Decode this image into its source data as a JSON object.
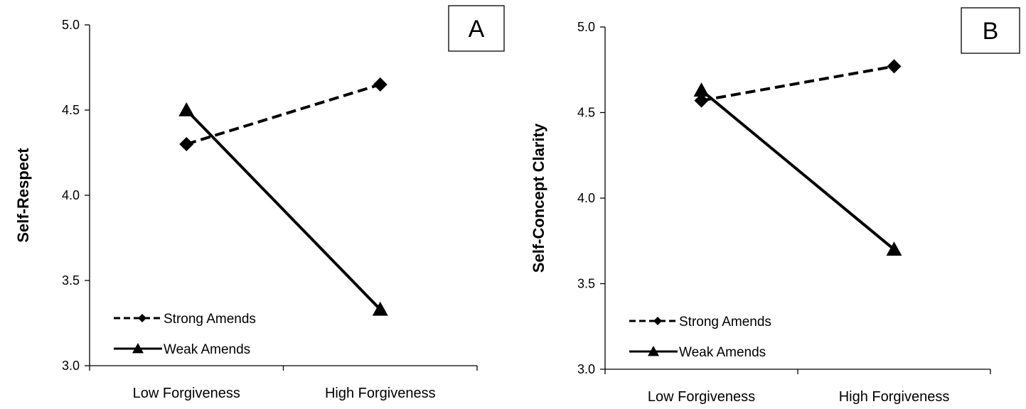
{
  "chart_data": [
    {
      "type": "line",
      "panel_label": "A",
      "title": "",
      "xlabel": "",
      "ylabel": "Self-Respect",
      "categories": [
        "Low Forgiveness",
        "High Forgiveness"
      ],
      "ylim": [
        3.0,
        5.0
      ],
      "yticks": [
        "3.0",
        "3.5",
        "4.0",
        "4.5",
        "5.0"
      ],
      "series": [
        {
          "name": "Strong Amends",
          "values": [
            4.3,
            4.65
          ],
          "line": "dashed",
          "marker": "diamond",
          "color": "#000000"
        },
        {
          "name": "Weak Amends",
          "values": [
            4.5,
            3.33
          ],
          "line": "solid",
          "marker": "triangle",
          "color": "#000000"
        }
      ],
      "legend_position": "bottom-left",
      "grid": false
    },
    {
      "type": "line",
      "panel_label": "B",
      "title": "",
      "xlabel": "",
      "ylabel": "Self-Concept Clarity",
      "categories": [
        "Low Forgiveness",
        "High Forgiveness"
      ],
      "ylim": [
        3.0,
        5.0
      ],
      "yticks": [
        "3.0",
        "3.5",
        "4.0",
        "4.5",
        "5.0"
      ],
      "series": [
        {
          "name": "Strong Amends",
          "values": [
            4.57,
            4.77
          ],
          "line": "dashed",
          "marker": "diamond",
          "color": "#000000"
        },
        {
          "name": "Weak Amends",
          "values": [
            4.63,
            3.7
          ],
          "line": "solid",
          "marker": "triangle",
          "color": "#000000"
        }
      ],
      "legend_position": "bottom-left",
      "grid": false
    }
  ]
}
